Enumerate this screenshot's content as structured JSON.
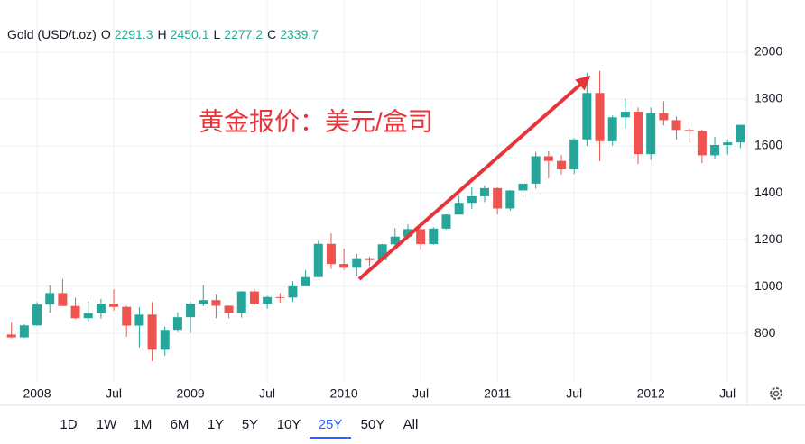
{
  "header": {
    "symbol": "Gold (USD/t.oz)",
    "ohlc": [
      {
        "label": "O",
        "value": 2291.3
      },
      {
        "label": "H",
        "value": 2450.1
      },
      {
        "label": "L",
        "value": 2277.2
      },
      {
        "label": "C",
        "value": 2339.7
      }
    ]
  },
  "chart_data": {
    "type": "candlestick",
    "annotation": "黄金报价：美元/盒司",
    "categories": [
      null,
      null,
      "2008",
      null,
      null,
      null,
      null,
      null,
      "Jul",
      null,
      null,
      null,
      null,
      null,
      "2009",
      null,
      null,
      null,
      null,
      null,
      "Jul",
      null,
      null,
      null,
      null,
      null,
      "2010",
      null,
      null,
      null,
      null,
      null,
      "Jul",
      null,
      null,
      null,
      null,
      null,
      "2011",
      null,
      null,
      null,
      null,
      null,
      "Jul",
      null,
      null,
      null,
      null,
      null,
      "2012",
      null,
      null,
      null,
      null,
      null,
      "Jul",
      null
    ],
    "open": [
      795,
      783,
      834,
      923,
      972,
      917,
      865,
      886,
      927,
      913,
      833,
      880,
      730,
      815,
      869,
      927,
      942,
      918,
      887,
      979,
      927,
      955,
      953,
      1001,
      1040,
      1182,
      1096,
      1080,
      1117,
      1113,
      1180,
      1213,
      1245,
      1181,
      1247,
      1307,
      1357,
      1385,
      1420,
      1333,
      1410,
      1439,
      1556,
      1536,
      1500,
      1628,
      1826,
      1620,
      1722,
      1746,
      1565,
      1740,
      1710,
      1668,
      1664,
      1560,
      1604,
      1615
    ],
    "high": [
      845,
      840,
      933,
      1005,
      1032,
      952,
      936,
      947,
      988,
      918,
      912,
      934,
      829,
      890,
      934,
      1006,
      965,
      919,
      980,
      990,
      960,
      972,
      1023,
      1070,
      1195,
      1227,
      1162,
      1140,
      1127,
      1182,
      1250,
      1265,
      1246,
      1253,
      1308,
      1387,
      1424,
      1432,
      1423,
      1411,
      1447,
      1575,
      1577,
      1561,
      1633,
      1913,
      1920,
      1730,
      1804,
      1764,
      1764,
      1791,
      1726,
      1677,
      1670,
      1640,
      1625,
      1690
    ],
    "low": [
      780,
      780,
      832,
      888,
      924,
      861,
      850,
      863,
      897,
      786,
      740,
      681,
      705,
      805,
      801,
      916,
      865,
      865,
      867,
      922,
      905,
      931,
      935,
      1001,
      1040,
      1075,
      1072,
      1044,
      1087,
      1111,
      1155,
      1207,
      1155,
      1178,
      1243,
      1307,
      1330,
      1360,
      1308,
      1323,
      1380,
      1418,
      1462,
      1478,
      1480,
      1600,
      1535,
      1602,
      1672,
      1523,
      1540,
      1688,
      1627,
      1612,
      1527,
      1547,
      1563,
      1590
    ],
    "close": [
      783,
      834,
      923,
      972,
      917,
      865,
      886,
      927,
      913,
      833,
      880,
      730,
      815,
      869,
      927,
      942,
      918,
      887,
      979,
      927,
      955,
      953,
      1001,
      1040,
      1182,
      1096,
      1080,
      1117,
      1113,
      1180,
      1213,
      1245,
      1181,
      1247,
      1307,
      1357,
      1385,
      1420,
      1333,
      1410,
      1439,
      1556,
      1536,
      1500,
      1628,
      1826,
      1620,
      1722,
      1746,
      1565,
      1740,
      1710,
      1668,
      1664,
      1560,
      1604,
      1615,
      1690
    ],
    "up_color": "#26a69a",
    "down_color": "#ef5350",
    "ylim": [
      589,
      2223
    ],
    "yticks": [
      800,
      1000,
      1200,
      1400,
      1600,
      1800,
      2000
    ],
    "grid": true
  },
  "range_buttons": [
    "1D",
    "1W",
    "1M",
    "6M",
    "1Y",
    "5Y",
    "10Y",
    "25Y",
    "50Y",
    "All"
  ],
  "selected_range": "25Y"
}
